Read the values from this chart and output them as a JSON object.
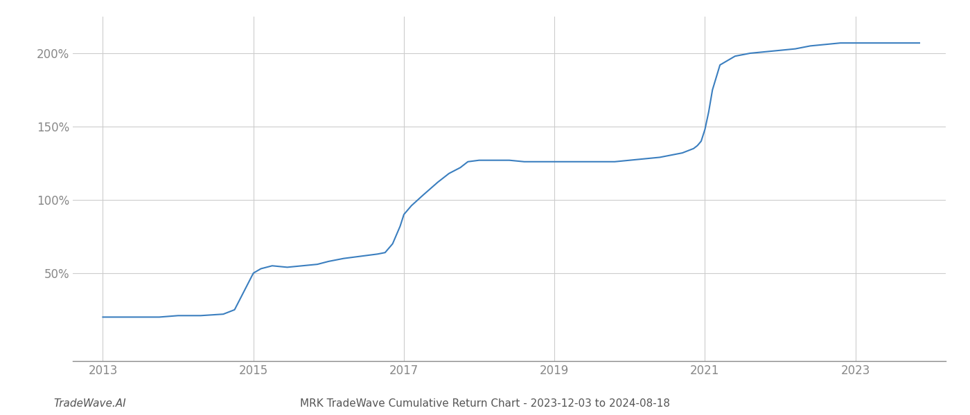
{
  "title": "MRK TradeWave Cumulative Return Chart - 2023-12-03 to 2024-08-18",
  "watermark": "TradeWave.AI",
  "line_color": "#3a7ebf",
  "background_color": "#ffffff",
  "grid_color": "#cccccc",
  "x_values": [
    2013.0,
    2013.08,
    2013.5,
    2013.75,
    2014.0,
    2014.3,
    2014.6,
    2014.75,
    2014.85,
    2015.0,
    2015.1,
    2015.25,
    2015.45,
    2015.65,
    2015.85,
    2016.0,
    2016.2,
    2016.5,
    2016.65,
    2016.75,
    2016.85,
    2016.95,
    2017.0,
    2017.1,
    2017.25,
    2017.45,
    2017.6,
    2017.75,
    2017.85,
    2018.0,
    2018.2,
    2018.4,
    2018.6,
    2018.8,
    2019.0,
    2019.2,
    2019.4,
    2019.5,
    2019.6,
    2019.8,
    2020.0,
    2020.2,
    2020.4,
    2020.5,
    2020.6,
    2020.7,
    2020.75,
    2020.8,
    2020.85,
    2020.9,
    2020.95,
    2021.0,
    2021.05,
    2021.1,
    2021.2,
    2021.4,
    2021.6,
    2021.8,
    2022.0,
    2022.2,
    2022.4,
    2022.6,
    2022.8,
    2023.0,
    2023.3,
    2023.6,
    2023.85
  ],
  "y_values": [
    20,
    20,
    20,
    20,
    21,
    21,
    22,
    25,
    35,
    50,
    53,
    55,
    54,
    55,
    56,
    58,
    60,
    62,
    63,
    64,
    70,
    82,
    90,
    96,
    103,
    112,
    118,
    122,
    126,
    127,
    127,
    127,
    126,
    126,
    126,
    126,
    126,
    126,
    126,
    126,
    127,
    128,
    129,
    130,
    131,
    132,
    133,
    134,
    135,
    137,
    140,
    148,
    160,
    175,
    192,
    198,
    200,
    201,
    202,
    203,
    205,
    206,
    207,
    207,
    207,
    207,
    207
  ],
  "yticks": [
    50,
    100,
    150,
    200
  ],
  "xticks": [
    2013,
    2015,
    2017,
    2019,
    2021,
    2023
  ],
  "xlim": [
    2012.6,
    2024.2
  ],
  "ylim": [
    -10,
    225
  ],
  "line_width": 1.5,
  "title_fontsize": 11,
  "tick_fontsize": 12,
  "watermark_fontsize": 11
}
